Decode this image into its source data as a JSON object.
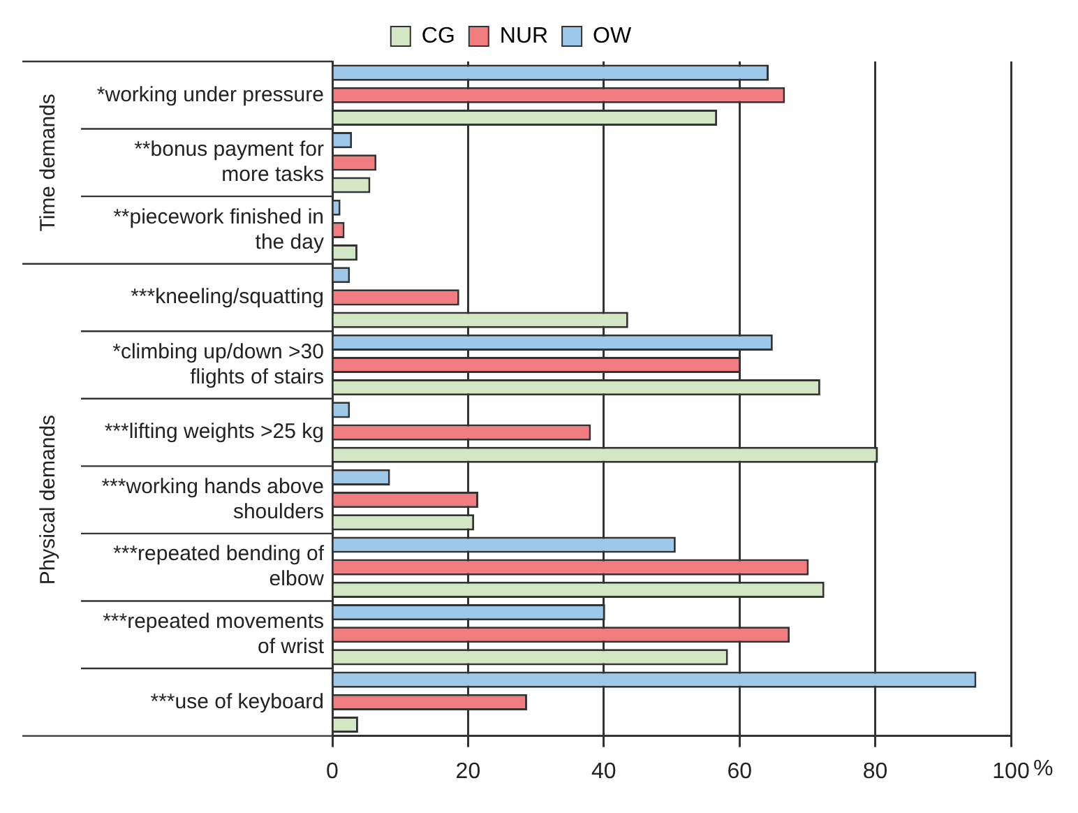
{
  "chart_data": {
    "type": "bar",
    "orientation": "horizontal",
    "xlabel": "%",
    "categories": [
      "*working under pressure",
      "**bonus payment for more tasks",
      "**piecework finished in the day",
      "***kneeling/squatting",
      "*climbing up/down >30 flights of stairs",
      "***lifting weights >25 kg",
      "***working hands above shoulders",
      "***repeated bending of elbow",
      "***repeated movements of wrist",
      "***use of keyboard"
    ],
    "series": [
      {
        "name": "OW",
        "color": "#9dc8ea",
        "values": [
          64.3,
          2.9,
          1.2,
          2.6,
          64.9,
          2.6,
          8.5,
          50.6,
          40.2,
          94.9
        ]
      },
      {
        "name": "NUR",
        "color": "#f07c7f",
        "values": [
          66.7,
          6.5,
          1.8,
          18.7,
          60.2,
          38.1,
          21.5,
          70.2,
          67.4,
          28.7
        ]
      },
      {
        "name": "CG",
        "color": "#d4e7c4",
        "values": [
          56.7,
          5.6,
          3.7,
          43.6,
          71.9,
          80.4,
          20.9,
          72.5,
          58.3,
          3.8
        ]
      }
    ],
    "xlim": [
      0,
      100
    ],
    "xticks": [
      0,
      20,
      40,
      60,
      80,
      100
    ],
    "grid": "x",
    "legend": "top",
    "annotations": [
      "Time demands",
      "Physical demands"
    ]
  }
}
